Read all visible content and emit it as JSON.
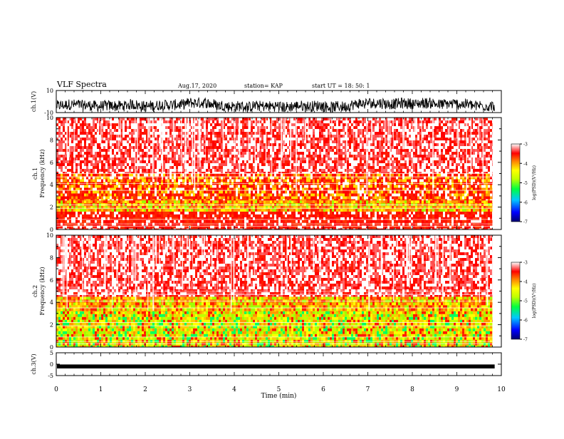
{
  "header": {
    "title": "VLF Spectra",
    "date": "Aug.17, 2020",
    "station": "station= KAP",
    "start": "start  UT =   18: 50: 1"
  },
  "chart_data": [
    {
      "id": "ch1-voltage",
      "type": "line",
      "ylabel": "ch.1(V)",
      "yticks": [
        "10",
        "-10"
      ],
      "ylim": [
        -10,
        10
      ],
      "xlim": [
        0,
        10
      ],
      "trace_mean": -4,
      "trace_amplitude": 5,
      "color": "#000000"
    },
    {
      "id": "ch1-spectrogram",
      "type": "heatmap",
      "ylabel": "ch.1\nFrequency  (kHz)",
      "ylabel_lines": [
        "ch.1",
        "Frequency  (kHz)"
      ],
      "yticks": [
        "0",
        "2",
        "4",
        "6",
        "8",
        "10"
      ],
      "ylim": [
        0,
        10
      ],
      "xlim": [
        0,
        9.8
      ],
      "bands": [
        {
          "f0": 0,
          "f1": 0.6,
          "level": "red-lines"
        },
        {
          "f0": 0.6,
          "f1": 1.6,
          "level": "red"
        },
        {
          "f0": 1.6,
          "f1": 2.6,
          "level": "orange-yellow"
        },
        {
          "f0": 2.6,
          "f1": 5.0,
          "level": "red-yellow"
        },
        {
          "f0": 5.0,
          "f1": 10,
          "level": "red-white"
        }
      ],
      "colorbar": {
        "label": "log(PSD)(V²/Hz)",
        "ticks": [
          "-3",
          "-4",
          "-5",
          "-6",
          "-7"
        ],
        "range": [
          -7,
          -3
        ]
      }
    },
    {
      "id": "ch2-spectrogram",
      "type": "heatmap",
      "ylabel": "ch.2\nFrequency  (kHz)",
      "ylabel_lines": [
        "ch.2",
        "Frequency  (kHz)"
      ],
      "yticks": [
        "0",
        "2",
        "4",
        "6",
        "8",
        "10"
      ],
      "ylim": [
        0,
        10
      ],
      "xlim": [
        0,
        9.8
      ],
      "bands": [
        {
          "f0": 0,
          "f1": 3.2,
          "level": "yellow-green"
        },
        {
          "f0": 3.2,
          "f1": 4.5,
          "level": "orange-yellow"
        },
        {
          "f0": 4.5,
          "f1": 10,
          "level": "red-white"
        }
      ],
      "colorbar": {
        "label": "log(PSD)(V²/Hz)",
        "ticks": [
          "-3",
          "-4",
          "-5",
          "-6",
          "-7"
        ],
        "range": [
          -7,
          -3
        ]
      }
    },
    {
      "id": "ch3-voltage",
      "type": "line",
      "ylabel": "ch.3(V)",
      "yticks": [
        "5",
        "0",
        "-5"
      ],
      "ylim": [
        -5,
        5
      ],
      "xlim": [
        0,
        10
      ],
      "trace_mean": -1,
      "trace_amplitude": 0.4,
      "color": "#000000"
    }
  ],
  "xaxis": {
    "label": "Time  (min)",
    "ticks": [
      "0",
      "1",
      "2",
      "3",
      "4",
      "5",
      "6",
      "7",
      "8",
      "9",
      "10"
    ],
    "range": [
      0,
      10
    ]
  },
  "colors": {
    "colormap": [
      "#0000a0",
      "#0040ff",
      "#00d0ff",
      "#00ff60",
      "#a0ff00",
      "#ffff00",
      "#ff9900",
      "#ff1a00",
      "#ffffff"
    ]
  }
}
